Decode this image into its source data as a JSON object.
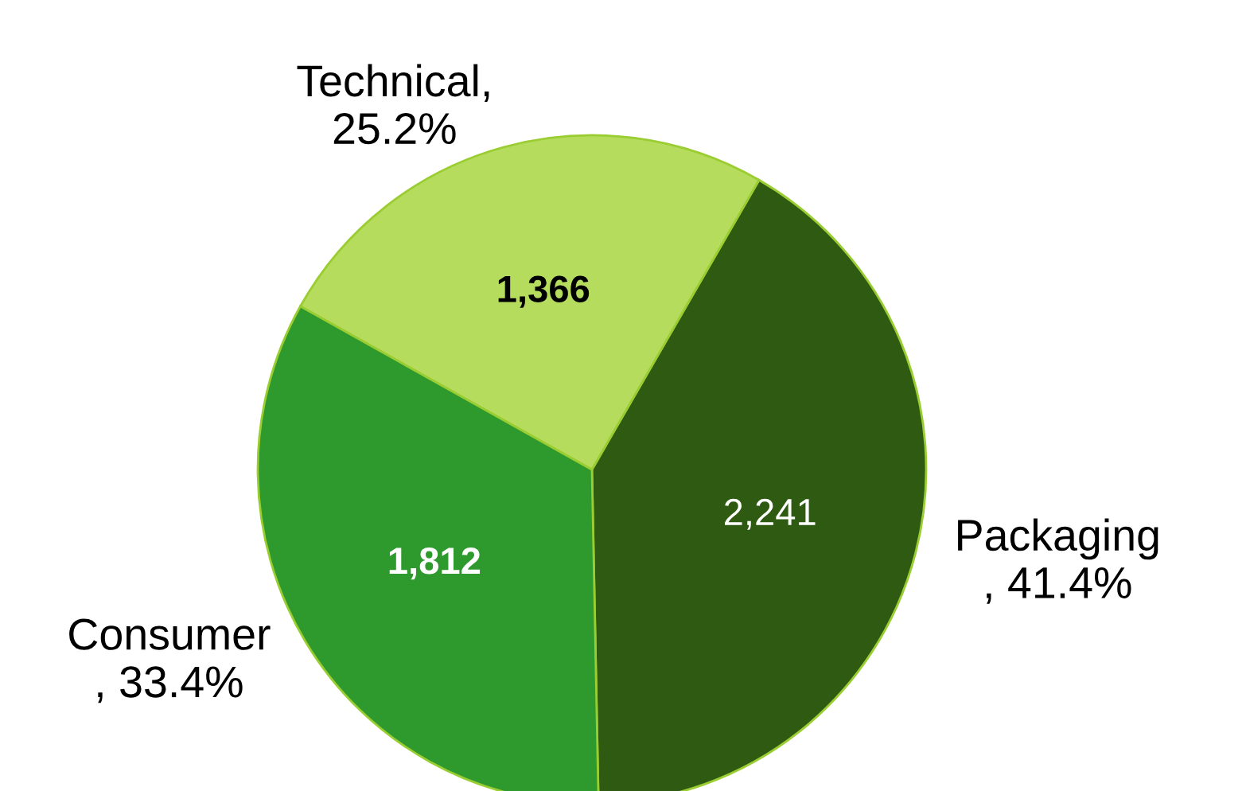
{
  "chart_data": {
    "type": "pie",
    "categories": [
      "Packaging",
      "Consumer",
      "Technical"
    ],
    "values": [
      2241,
      1812,
      1366
    ],
    "value_labels": [
      "2,241",
      "1,812",
      "1,366"
    ],
    "colors": [
      "#2f5a12",
      "#2e9a2e",
      "#b5dc5c"
    ],
    "annotations": [
      "\n, 41.4%",
      "\n, 33.4%",
      ",\n25.2%"
    ],
    "legend": false
  }
}
